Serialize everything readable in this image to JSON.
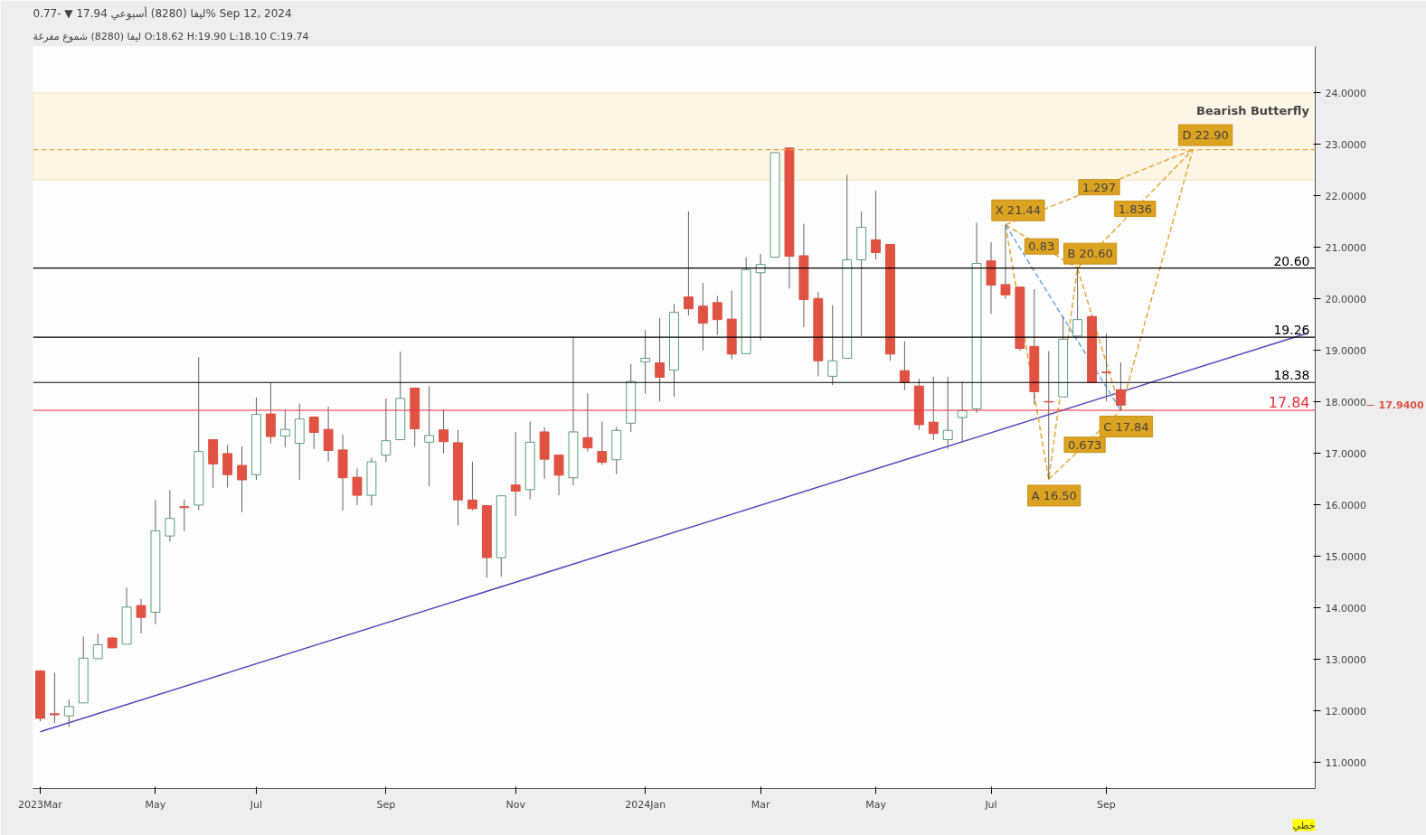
{
  "chart_data": {
    "type": "candlestick",
    "title": "ليفا (8280)    أسبوعي    17.94 ▼ -0.77%    Sep 12, 2024",
    "subtitle": "ليفا (8280) شموع مفرغة    O:18.62  H:19.90  L:18.10  C:19.74",
    "categories": [
      "2023Mar",
      null,
      null,
      null,
      null,
      null,
      null,
      null,
      "May",
      null,
      null,
      null,
      null,
      null,
      null,
      "Jul",
      null,
      null,
      null,
      null,
      null,
      null,
      null,
      null,
      "Sep",
      null,
      null,
      null,
      null,
      null,
      null,
      null,
      null,
      "Nov",
      null,
      null,
      null,
      null,
      null,
      null,
      null,
      null,
      "2024Jan",
      null,
      null,
      null,
      null,
      null,
      null,
      null,
      "Mar",
      null,
      null,
      null,
      null,
      null,
      null,
      null,
      "May",
      null,
      null,
      null,
      null,
      null,
      null,
      null,
      "Jul",
      null,
      null,
      null,
      null,
      null,
      null,
      null,
      "Sep",
      null,
      null,
      null,
      null,
      null,
      null,
      null,
      null,
      null,
      null,
      null,
      null,
      null,
      null
    ],
    "ohlc": [
      [
        12.78,
        12.8,
        11.8,
        11.86
      ],
      [
        11.95,
        12.75,
        11.77,
        11.93
      ],
      [
        11.91,
        12.23,
        11.7,
        12.09
      ],
      [
        12.16,
        13.45,
        12.16,
        13.03
      ],
      [
        13.02,
        13.5,
        13.02,
        13.29
      ],
      [
        13.42,
        13.44,
        13.23,
        13.23
      ],
      [
        13.3,
        14.4,
        13.3,
        14.02
      ],
      [
        14.05,
        14.18,
        13.51,
        13.82
      ],
      [
        13.92,
        16.1,
        13.69,
        15.5
      ],
      [
        15.4,
        16.29,
        15.29,
        15.74
      ],
      [
        15.97,
        16.11,
        15.49,
        15.95
      ],
      [
        16.0,
        18.87,
        15.9,
        17.04
      ],
      [
        17.27,
        17.27,
        16.33,
        16.8
      ],
      [
        17.0,
        17.17,
        16.34,
        16.59
      ],
      [
        16.77,
        17.14,
        15.86,
        16.49
      ],
      [
        16.59,
        18.09,
        16.49,
        17.76
      ],
      [
        17.77,
        18.38,
        17.2,
        17.33
      ],
      [
        17.34,
        17.86,
        17.12,
        17.47
      ],
      [
        17.2,
        17.97,
        16.49,
        17.67
      ],
      [
        17.71,
        17.72,
        17.09,
        17.41
      ],
      [
        17.47,
        17.91,
        16.84,
        17.06
      ],
      [
        17.07,
        17.37,
        15.89,
        16.53
      ],
      [
        16.54,
        16.71,
        16.0,
        16.19
      ],
      [
        16.19,
        16.92,
        15.99,
        16.84
      ],
      [
        16.97,
        18.07,
        16.84,
        17.25
      ],
      [
        17.27,
        18.98,
        17.27,
        18.07
      ],
      [
        18.27,
        18.27,
        17.13,
        17.48
      ],
      [
        17.22,
        18.31,
        16.36,
        17.35
      ],
      [
        17.46,
        17.86,
        17.0,
        17.23
      ],
      [
        17.21,
        17.46,
        15.61,
        16.1
      ],
      [
        16.1,
        16.84,
        15.9,
        15.93
      ],
      [
        15.99,
        15.99,
        14.59,
        14.98
      ],
      [
        14.98,
        16.18,
        14.61,
        16.18
      ],
      [
        16.39,
        17.42,
        15.79,
        16.27
      ],
      [
        16.3,
        17.62,
        16.11,
        17.22
      ],
      [
        17.42,
        17.51,
        16.51,
        16.89
      ],
      [
        16.97,
        16.97,
        16.19,
        16.58
      ],
      [
        16.53,
        19.26,
        16.38,
        17.42
      ],
      [
        17.31,
        18.17,
        17.04,
        17.11
      ],
      [
        17.04,
        17.62,
        16.78,
        16.83
      ],
      [
        16.88,
        17.52,
        16.6,
        17.45
      ],
      [
        17.59,
        18.74,
        17.42,
        18.4
      ],
      [
        18.78,
        19.4,
        18.16,
        18.85
      ],
      [
        18.76,
        19.63,
        18.01,
        18.48
      ],
      [
        18.62,
        19.9,
        18.1,
        19.74
      ],
      [
        20.04,
        21.7,
        19.68,
        19.81
      ],
      [
        19.86,
        20.31,
        19.0,
        19.53
      ],
      [
        19.93,
        20.06,
        19.3,
        19.6
      ],
      [
        19.61,
        20.16,
        18.83,
        18.93
      ],
      [
        18.94,
        20.81,
        18.94,
        20.57
      ],
      [
        20.51,
        20.88,
        19.2,
        20.67
      ],
      [
        20.81,
        22.84,
        20.81,
        22.84
      ],
      [
        22.93,
        22.93,
        20.2,
        20.83
      ],
      [
        20.84,
        21.46,
        19.45,
        19.99
      ],
      [
        20.01,
        20.14,
        18.5,
        18.8
      ],
      [
        18.5,
        19.88,
        18.33,
        18.8
      ],
      [
        18.85,
        22.41,
        18.85,
        20.76
      ],
      [
        20.76,
        21.7,
        19.28,
        21.39
      ],
      [
        21.15,
        22.1,
        20.77,
        20.9
      ],
      [
        21.06,
        21.06,
        18.8,
        18.93
      ],
      [
        18.61,
        19.18,
        18.23,
        18.38
      ],
      [
        18.31,
        18.45,
        17.46,
        17.56
      ],
      [
        17.61,
        18.49,
        17.26,
        17.39
      ],
      [
        17.27,
        18.49,
        17.09,
        17.45
      ],
      [
        17.7,
        18.4,
        17.24,
        17.83
      ],
      [
        17.87,
        21.48,
        17.79,
        20.69
      ],
      [
        20.74,
        21.1,
        19.71,
        20.27
      ],
      [
        20.28,
        21.44,
        20.0,
        20.08
      ],
      [
        20.23,
        20.23,
        19.0,
        19.04
      ],
      [
        19.08,
        20.19,
        17.95,
        18.2
      ],
      [
        18.01,
        18.99,
        16.5,
        18.0
      ],
      [
        18.1,
        19.66,
        18.1,
        19.22
      ],
      [
        19.28,
        20.6,
        19.28,
        19.6
      ],
      [
        19.66,
        19.7,
        18.38,
        18.38
      ],
      [
        18.58,
        19.33,
        18.02,
        18.57
      ],
      [
        18.24,
        18.77,
        17.84,
        17.94
      ],
      null,
      null,
      null,
      null,
      null,
      null,
      null,
      null,
      null,
      null,
      null,
      null,
      null
    ],
    "series": [
      {
        "type": "line",
        "color": "#5b45b8",
        "line_style": "solid",
        "values": [
          11.6,
          null,
          null,
          null,
          null,
          null,
          null,
          null,
          null,
          null,
          null,
          null,
          null,
          null,
          null,
          null,
          null,
          null,
          null,
          null,
          null,
          null,
          null,
          null,
          null,
          null,
          null,
          null,
          null,
          null,
          null,
          null,
          null,
          null,
          null,
          null,
          null,
          null,
          null,
          null,
          null,
          null,
          null,
          null,
          null,
          null,
          null,
          null,
          null,
          null,
          null,
          null,
          null,
          null,
          null,
          null,
          null,
          null,
          null,
          null,
          null,
          null,
          null,
          null,
          null,
          null,
          null,
          null,
          null,
          null,
          null,
          null,
          null,
          null,
          null,
          null,
          null,
          null,
          null,
          null,
          null,
          null,
          null,
          null,
          null,
          null,
          null,
          null,
          19.34
        ]
      },
      {
        "type": "line",
        "name": "Bearish Butterfly",
        "color": "#e6a93a",
        "line_style": "dashed",
        "values": [
          null,
          null,
          null,
          null,
          null,
          null,
          null,
          null,
          null,
          null,
          null,
          null,
          null,
          null,
          null,
          null,
          null,
          null,
          null,
          null,
          null,
          null,
          null,
          null,
          null,
          null,
          null,
          null,
          null,
          null,
          null,
          null,
          null,
          null,
          null,
          null,
          null,
          null,
          null,
          null,
          null,
          null,
          null,
          null,
          null,
          null,
          null,
          null,
          null,
          null,
          null,
          null,
          null,
          null,
          null,
          null,
          null,
          null,
          null,
          null,
          null,
          null,
          null,
          null,
          null,
          null,
          null,
          21.44,
          null,
          null,
          16.5,
          null,
          20.6,
          null,
          null,
          17.84,
          null,
          null,
          null,
          null,
          22.9,
          null,
          null,
          null,
          null,
          null,
          null,
          null,
          null
        ]
      },
      {
        "type": "line",
        "color": "#e6a93a",
        "line_style": "dashed",
        "values": [
          null,
          null,
          null,
          null,
          null,
          null,
          null,
          null,
          null,
          null,
          null,
          null,
          null,
          null,
          null,
          null,
          null,
          null,
          null,
          null,
          null,
          null,
          null,
          null,
          null,
          null,
          null,
          null,
          null,
          null,
          null,
          null,
          null,
          null,
          null,
          null,
          null,
          null,
          null,
          null,
          null,
          null,
          null,
          null,
          null,
          null,
          null,
          null,
          null,
          null,
          null,
          null,
          null,
          null,
          null,
          null,
          null,
          null,
          null,
          null,
          null,
          null,
          null,
          null,
          null,
          null,
          null,
          21.44,
          null,
          null,
          null,
          null,
          20.6,
          null,
          null,
          null,
          null,
          null,
          null,
          null,
          null,
          null,
          null,
          null,
          null,
          null,
          null,
          null,
          null
        ]
      },
      {
        "type": "line",
        "color": "#e6a93a",
        "line_style": "dashed",
        "values": [
          null,
          null,
          null,
          null,
          null,
          null,
          null,
          null,
          null,
          null,
          null,
          null,
          null,
          null,
          null,
          null,
          null,
          null,
          null,
          null,
          null,
          null,
          null,
          null,
          null,
          null,
          null,
          null,
          null,
          null,
          null,
          null,
          null,
          null,
          null,
          null,
          null,
          null,
          null,
          null,
          null,
          null,
          null,
          null,
          null,
          null,
          null,
          null,
          null,
          null,
          null,
          null,
          null,
          null,
          null,
          null,
          null,
          null,
          null,
          null,
          null,
          null,
          null,
          null,
          null,
          null,
          null,
          null,
          null,
          null,
          16.5,
          null,
          null,
          null,
          null,
          17.84,
          null,
          null,
          null,
          null,
          null,
          null,
          null,
          null,
          null,
          null,
          null,
          null,
          null
        ]
      },
      {
        "type": "line",
        "color": "#e6a93a",
        "line_style": "dashed",
        "values": [
          null,
          null,
          null,
          null,
          null,
          null,
          null,
          null,
          null,
          null,
          null,
          null,
          null,
          null,
          null,
          null,
          null,
          null,
          null,
          null,
          null,
          null,
          null,
          null,
          null,
          null,
          null,
          null,
          null,
          null,
          null,
          null,
          null,
          null,
          null,
          null,
          null,
          null,
          null,
          null,
          null,
          null,
          null,
          null,
          null,
          null,
          null,
          null,
          null,
          null,
          null,
          null,
          null,
          null,
          null,
          null,
          null,
          null,
          null,
          null,
          null,
          null,
          null,
          null,
          null,
          null,
          null,
          null,
          null,
          null,
          null,
          null,
          20.6,
          null,
          null,
          null,
          null,
          null,
          null,
          null,
          22.9,
          null,
          null,
          null,
          null,
          null,
          null,
          null,
          null
        ]
      },
      {
        "type": "line",
        "color": "#e6a93a",
        "line_style": "dashed",
        "values": [
          null,
          null,
          null,
          null,
          null,
          null,
          null,
          null,
          null,
          null,
          null,
          null,
          null,
          null,
          null,
          null,
          null,
          null,
          null,
          null,
          null,
          null,
          null,
          null,
          null,
          null,
          null,
          null,
          null,
          null,
          null,
          null,
          null,
          null,
          null,
          null,
          null,
          null,
          null,
          null,
          null,
          null,
          null,
          null,
          null,
          null,
          null,
          null,
          null,
          null,
          null,
          null,
          null,
          null,
          null,
          null,
          null,
          null,
          null,
          null,
          null,
          null,
          null,
          null,
          null,
          null,
          null,
          21.44,
          null,
          null,
          null,
          null,
          null,
          null,
          null,
          null,
          null,
          null,
          null,
          null,
          22.9,
          null,
          null,
          null,
          null,
          null,
          null,
          null,
          null
        ]
      },
      {
        "type": "line",
        "color": "#6fa8e0",
        "line_style": "dashed",
        "values": [
          null,
          null,
          null,
          null,
          null,
          null,
          null,
          null,
          null,
          null,
          null,
          null,
          null,
          null,
          null,
          null,
          null,
          null,
          null,
          null,
          null,
          null,
          null,
          null,
          null,
          null,
          null,
          null,
          null,
          null,
          null,
          null,
          null,
          null,
          null,
          null,
          null,
          null,
          null,
          null,
          null,
          null,
          null,
          null,
          null,
          null,
          null,
          null,
          null,
          null,
          null,
          null,
          null,
          null,
          null,
          null,
          null,
          null,
          null,
          null,
          null,
          null,
          null,
          null,
          null,
          null,
          null,
          21.44,
          null,
          null,
          null,
          null,
          null,
          null,
          null,
          17.84,
          null,
          null,
          null,
          null,
          null,
          null,
          null,
          null,
          null,
          null,
          null,
          null,
          null
        ]
      }
    ],
    "ref_lines": [
      {
        "axis": "y",
        "value": 20.6,
        "label": "20.60",
        "color": "#000000"
      },
      {
        "axis": "y",
        "value": 19.26,
        "label": "19.26",
        "color": "#000000"
      },
      {
        "axis": "y",
        "value": 18.38,
        "label": "18.38",
        "color": "#000000"
      },
      {
        "axis": "y",
        "value": 17.84,
        "label": "17.84",
        "color": "#e8303a"
      },
      {
        "axis": "y",
        "value": 22.9,
        "color": "#e6a93a",
        "line_style": "dashed"
      }
    ],
    "bands": [
      {
        "axis": "y",
        "from": 22.31,
        "to": 24.0,
        "color": "#fdf5e6"
      }
    ],
    "annotations": [
      "X 21.44",
      "A 16.50",
      "B 20.60",
      "C 17.84",
      "D 22.90",
      "0.83",
      "0.673",
      "1.836",
      "1.297",
      "17.9400",
      "خطي"
    ],
    "ylim": [
      10.5,
      24.9
    ],
    "yticks": [
      {
        "value": 11,
        "label": "11.0000"
      },
      {
        "value": 12,
        "label": "12.0000"
      },
      {
        "value": 13,
        "label": "13.0000"
      },
      {
        "value": 14,
        "label": "14.0000"
      },
      {
        "value": 15,
        "label": "15.0000"
      },
      {
        "value": 16,
        "label": "16.0000"
      },
      {
        "value": 17,
        "label": "17.0000"
      },
      {
        "value": 18,
        "label": "18.0000"
      },
      {
        "value": 19,
        "label": "19.0000"
      },
      {
        "value": 20,
        "label": "20.0000"
      },
      {
        "value": 21,
        "label": "21.0000"
      },
      {
        "value": 22,
        "label": "22.0000"
      },
      {
        "value": 23,
        "label": "23.0000"
      },
      {
        "value": 24,
        "label": "24.0000"
      }
    ],
    "grid": false
  }
}
